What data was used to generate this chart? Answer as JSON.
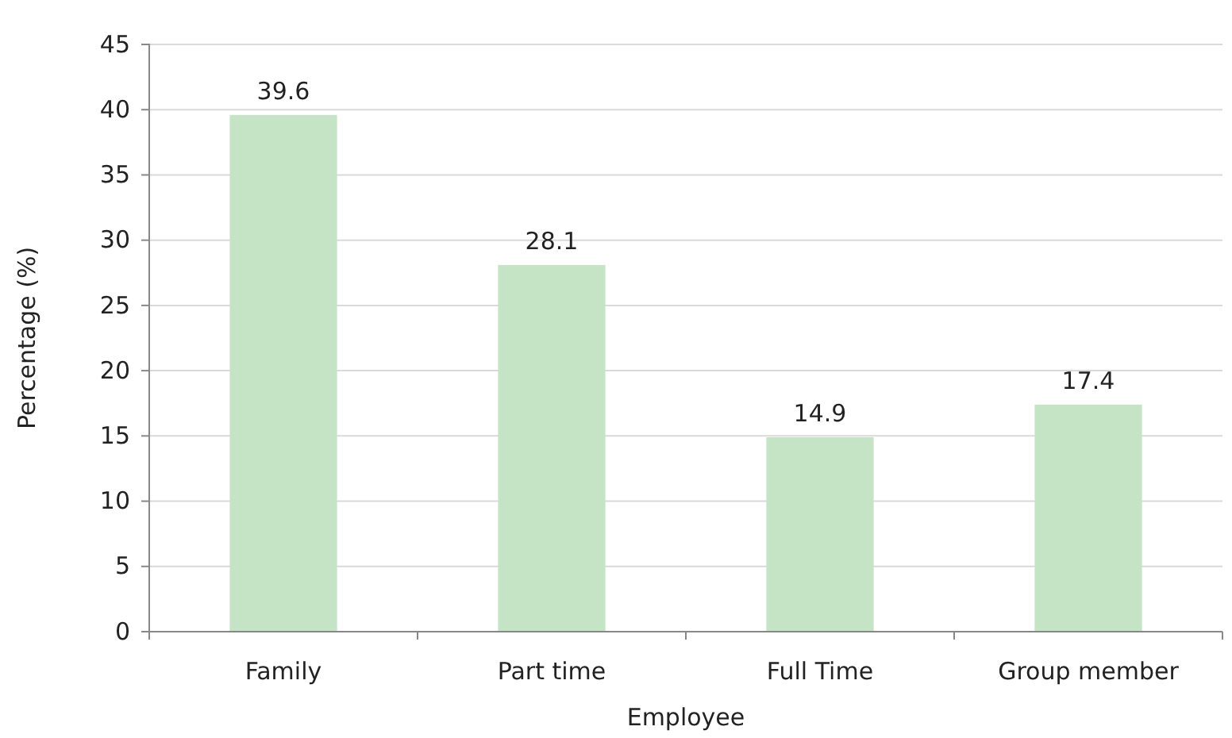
{
  "chart_data": {
    "type": "bar",
    "xlabel": "Employee",
    "ylabel": "Percentage (%)",
    "categories": [
      "Family",
      "Part time",
      "Full Time",
      "Group member"
    ],
    "values": [
      39.6,
      28.1,
      14.9,
      17.4
    ],
    "color": "#c5e3c5",
    "ylim": [
      0,
      45
    ],
    "yticks": [
      0,
      5,
      10,
      15,
      20,
      25,
      30,
      35,
      40,
      45
    ],
    "grid": "y",
    "data_labels": true
  }
}
